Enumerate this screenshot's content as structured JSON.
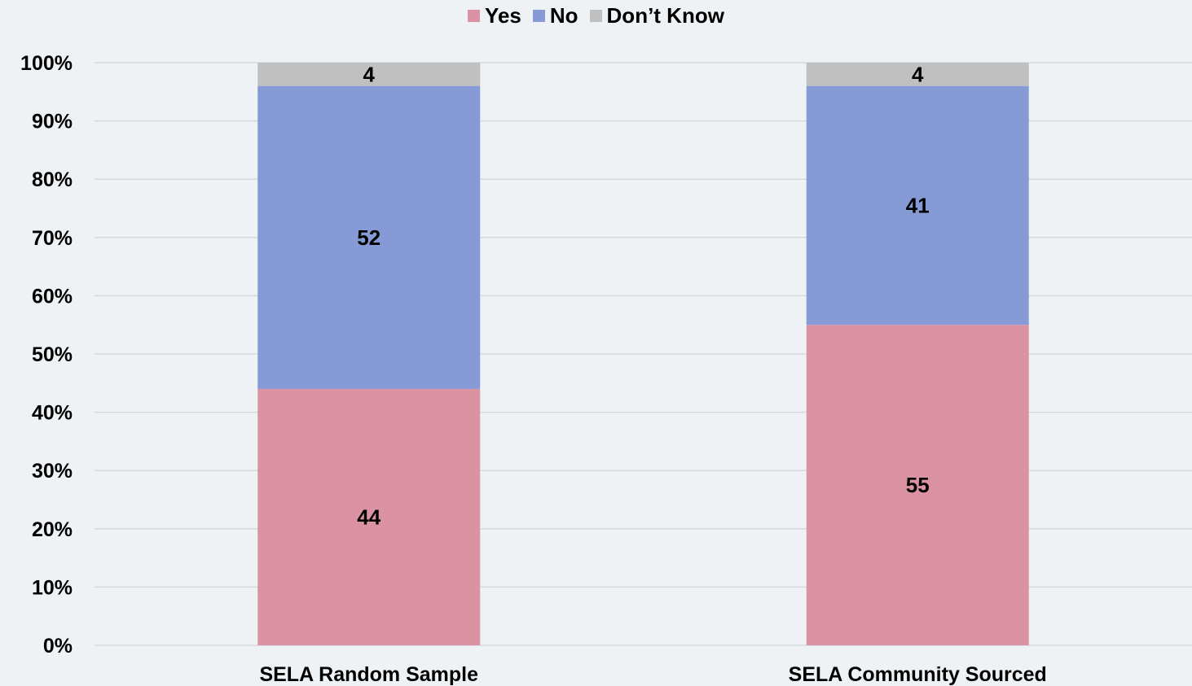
{
  "chart_data": {
    "type": "bar",
    "stacked": true,
    "percent_axis": true,
    "categories": [
      "SELA Random Sample",
      "SELA Community Sourced"
    ],
    "series": [
      {
        "name": "Yes",
        "values": [
          44,
          55
        ],
        "color": "#db93a3"
      },
      {
        "name": "No",
        "values": [
          52,
          41
        ],
        "color": "#869bd6"
      },
      {
        "name": "Don’t Know",
        "values": [
          4,
          4
        ],
        "color": "#c0c0c0"
      }
    ],
    "y_ticks": [
      "0%",
      "10%",
      "20%",
      "30%",
      "40%",
      "50%",
      "60%",
      "70%",
      "80%",
      "90%",
      "100%"
    ],
    "ylim": [
      0,
      100
    ],
    "grid": true,
    "legend_position": "top-center",
    "title": "",
    "xlabel": "",
    "ylabel": ""
  }
}
